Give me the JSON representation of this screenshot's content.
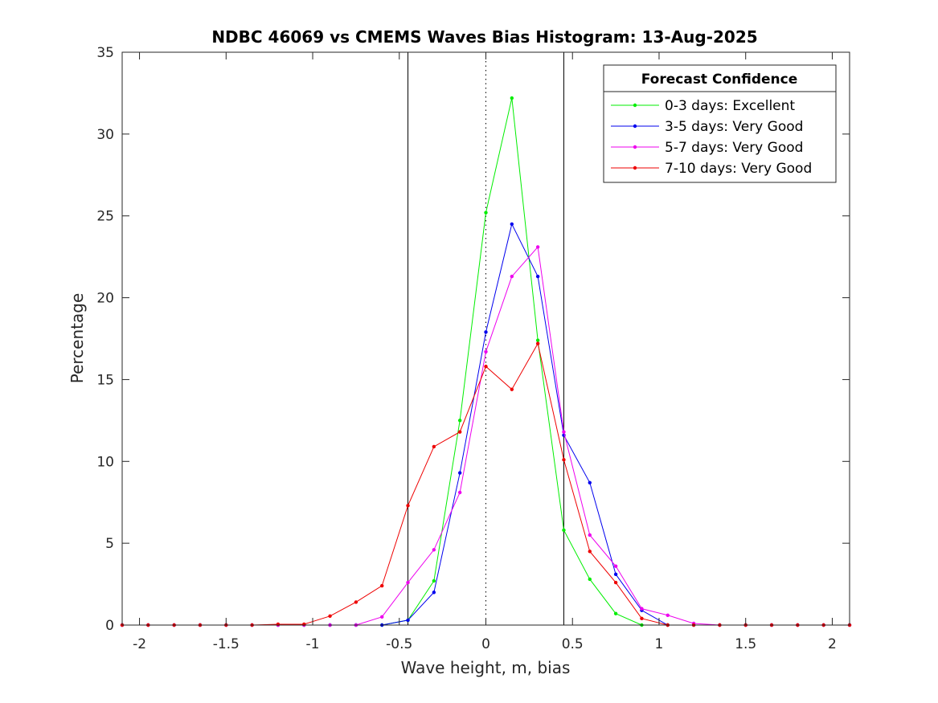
{
  "chart_data": {
    "type": "line",
    "title": "NDBC 46069 vs CMEMS Waves Bias Histogram: 13-Aug-2025",
    "xlabel": "Wave height, m, bias",
    "ylabel": "Percentage",
    "xlim": [
      -2.1,
      2.1
    ],
    "ylim": [
      0,
      35
    ],
    "xticks": [
      -2,
      -1.5,
      -1,
      -0.5,
      0,
      0.5,
      1,
      1.5,
      2
    ],
    "xtick_labels": [
      "-2",
      "-1.5",
      "-1",
      "-0.5",
      "0",
      "0.5",
      "1",
      "1.5",
      "2"
    ],
    "yticks": [
      0,
      5,
      10,
      15,
      20,
      25,
      30,
      35
    ],
    "ytick_labels": [
      "0",
      "5",
      "10",
      "15",
      "20",
      "25",
      "30",
      "35"
    ],
    "grid": false,
    "legend_title": "Forecast Confidence",
    "legend_position": "top-right",
    "vertical_lines": [
      {
        "x": -0.45,
        "style": "solid"
      },
      {
        "x": 0,
        "style": "dotted"
      },
      {
        "x": 0.45,
        "style": "solid"
      }
    ],
    "x": [
      -2.1,
      -1.95,
      -1.8,
      -1.65,
      -1.5,
      -1.35,
      -1.2,
      -1.05,
      -0.9,
      -0.75,
      -0.6,
      -0.45,
      -0.3,
      -0.15,
      0,
      0.15,
      0.3,
      0.45,
      0.6,
      0.75,
      0.9,
      1.05,
      1.2,
      1.35,
      1.5,
      1.65,
      1.8,
      1.95,
      2.1
    ],
    "series": [
      {
        "name": "0-3 days: Excellent",
        "color": "#00ee00",
        "values": [
          0,
          0,
          0,
          0,
          0,
          0,
          0,
          0,
          0,
          0,
          0,
          0.3,
          2.7,
          12.5,
          25.2,
          32.2,
          17.4,
          5.8,
          2.8,
          0.7,
          0,
          0,
          0,
          0,
          0,
          0,
          0,
          0,
          0
        ]
      },
      {
        "name": "3-5 days: Very Good",
        "color": "#0000ee",
        "values": [
          0,
          0,
          0,
          0,
          0,
          0,
          0,
          0,
          0,
          0,
          0,
          0.3,
          2.0,
          9.3,
          17.9,
          24.5,
          21.3,
          11.6,
          8.7,
          3.1,
          0.9,
          0,
          0,
          0,
          0,
          0,
          0,
          0,
          0
        ]
      },
      {
        "name": "5-7 days: Very Good",
        "color": "#ee00ee",
        "values": [
          0,
          0,
          0,
          0,
          0,
          0,
          0,
          0,
          0,
          0,
          0.5,
          2.6,
          4.6,
          8.1,
          16.7,
          21.3,
          23.1,
          11.8,
          5.5,
          3.6,
          1.0,
          0.6,
          0.1,
          0,
          0,
          0,
          0,
          0,
          0
        ]
      },
      {
        "name": "7-10 days: Very Good",
        "color": "#ee0000",
        "values": [
          0,
          0,
          0,
          0,
          0,
          0,
          0.05,
          0.05,
          0.55,
          1.4,
          2.4,
          7.3,
          10.9,
          11.8,
          15.8,
          14.4,
          17.2,
          10.1,
          4.5,
          2.6,
          0.4,
          0,
          0,
          0,
          0,
          0,
          0,
          0,
          0
        ]
      }
    ]
  }
}
